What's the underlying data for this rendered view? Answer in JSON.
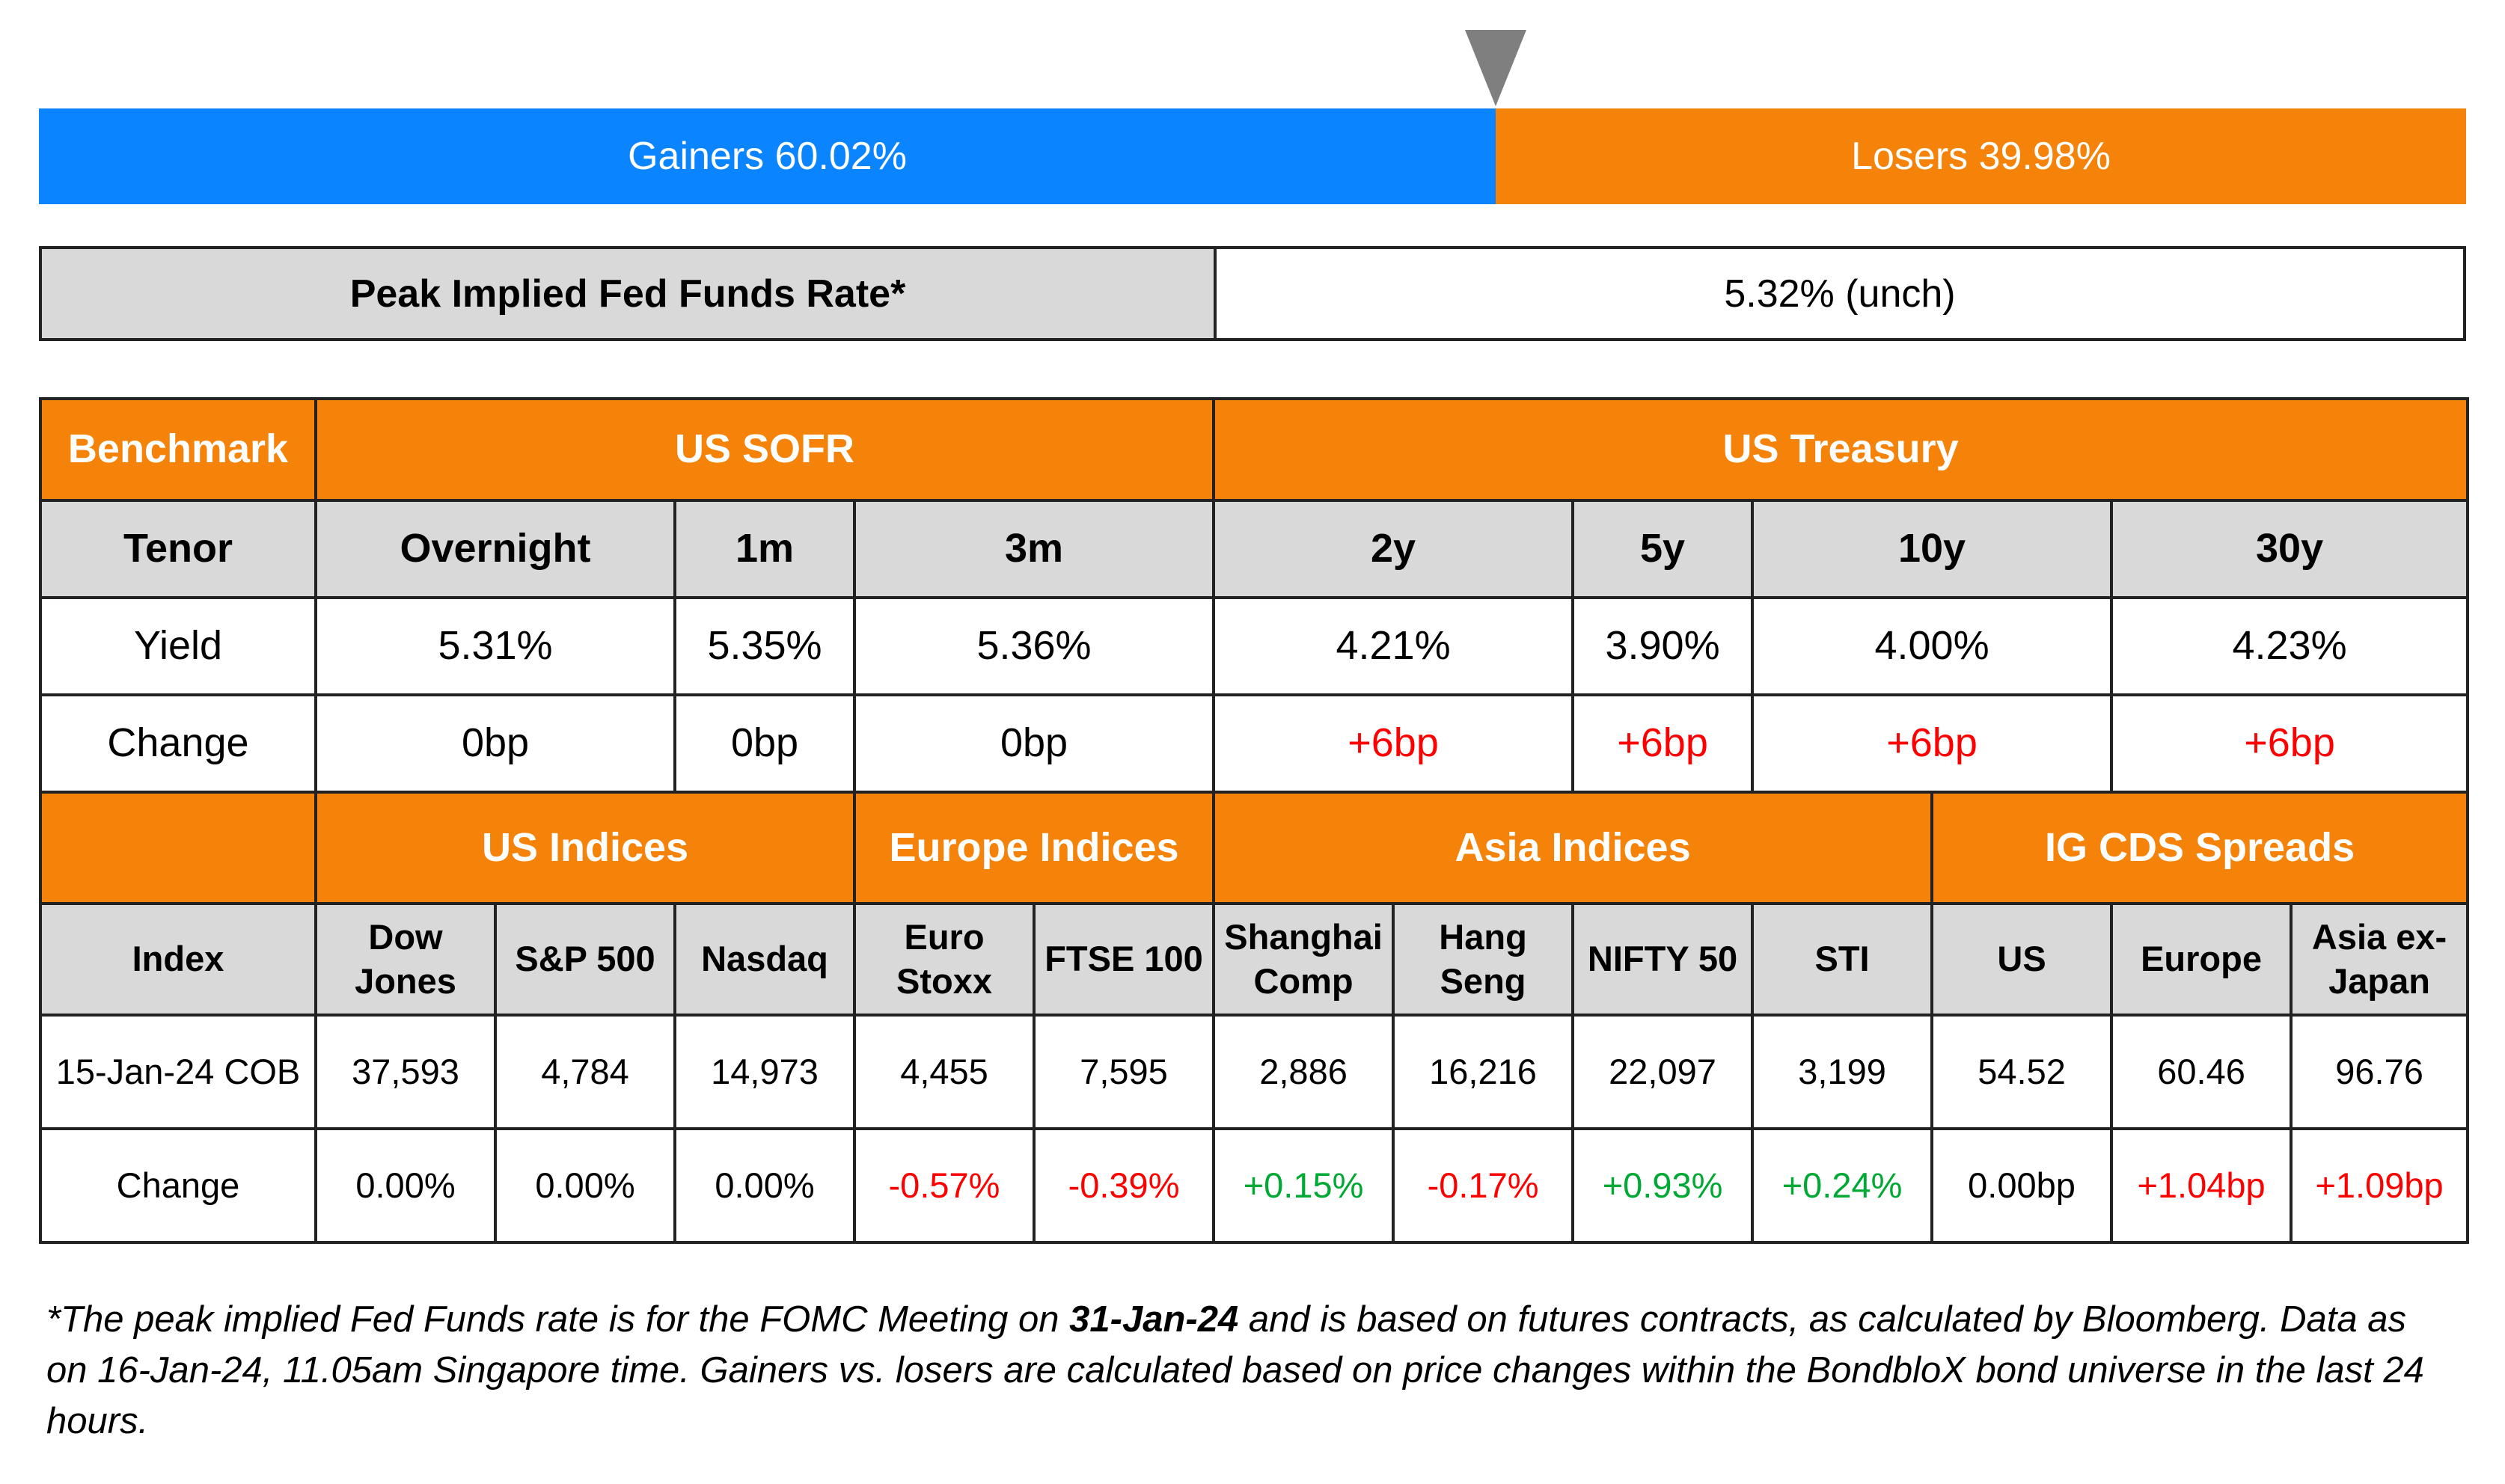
{
  "gainers_losers": {
    "gainers_label": "Gainers 60.02%",
    "losers_label": "Losers 39.98%",
    "gainers_pct": 60.02,
    "losers_pct": 39.98,
    "gainers_color": "#0a84ff",
    "losers_color": "#f5830a",
    "marker_color": "#7f7f7f"
  },
  "peak": {
    "label": "Peak Implied Fed Funds Rate*",
    "value": "5.32% (unch)"
  },
  "rates": {
    "benchmark_label": "Benchmark",
    "sofr_label": "US SOFR",
    "treasury_label": "US Treasury",
    "tenor_label": "Tenor",
    "yield_label": "Yield",
    "change_label": "Change",
    "tenors": [
      "Overnight",
      "1m",
      "3m",
      "2y",
      "5y",
      "10y",
      "30y"
    ],
    "yields": [
      "5.31%",
      "5.35%",
      "5.36%",
      "4.21%",
      "3.90%",
      "4.00%",
      "4.23%"
    ],
    "changes": [
      "0bp",
      "0bp",
      "0bp",
      "+6bp",
      "+6bp",
      "+6bp",
      "+6bp"
    ]
  },
  "indices": {
    "us_label": "US Indices",
    "europe_label": "Europe Indices",
    "asia_label": "Asia Indices",
    "cds_label": "IG CDS Spreads",
    "index_label": "Index",
    "date_label": "15-Jan-24 COB",
    "change_label": "Change",
    "names": [
      [
        "Dow",
        "Jones"
      ],
      [
        "S&P 500"
      ],
      [
        "Nasdaq"
      ],
      [
        "Euro",
        "Stoxx"
      ],
      [
        "FTSE 100"
      ],
      [
        "Shanghai",
        "Comp"
      ],
      [
        "Hang",
        "Seng"
      ],
      [
        "NIFTY 50"
      ],
      [
        "STI"
      ],
      [
        "US"
      ],
      [
        "Europe"
      ],
      [
        "Asia ex-",
        "Japan"
      ]
    ],
    "values": [
      "37,593",
      "4,784",
      "14,973",
      "4,455",
      "7,595",
      "2,886",
      "16,216",
      "22,097",
      "3,199",
      "54.52",
      "60.46",
      "96.76"
    ],
    "changes": [
      "0.00%",
      "0.00%",
      "0.00%",
      "-0.57%",
      "-0.39%",
      "+0.15%",
      "-0.17%",
      "+0.93%",
      "+0.24%",
      "0.00bp",
      "+1.04bp",
      "+1.09bp"
    ]
  },
  "footnote": {
    "part1": "*The peak implied Fed Funds rate is for the FOMC Meeting on ",
    "date": "31-Jan-24",
    "part2": " and is based on futures contracts, as calculated by Bloomberg. Data as on 16-Jan-24, 11.05am Singapore time. Gainers vs. losers are calculated based on price changes within the BondbloX bond universe in the last 24 hours."
  },
  "colors": {
    "header_orange": "#f5830a",
    "header_grey": "#d9d9d9",
    "up_red": "#ff0000",
    "up_green": "#00a933",
    "down_red": "#ff0000"
  }
}
